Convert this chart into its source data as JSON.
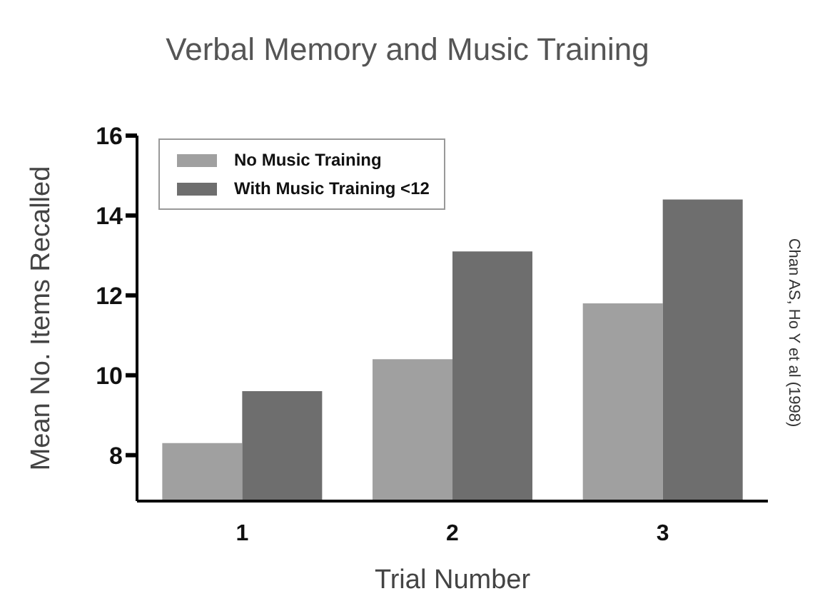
{
  "chart_data": {
    "type": "bar",
    "title": "Verbal Memory and Music Training",
    "xlabel": "Trial Number",
    "ylabel": "Mean No. Items Recalled",
    "categories": [
      "1",
      "2",
      "3"
    ],
    "series": [
      {
        "name": "No Music Training",
        "color": "#a0a0a0",
        "values": [
          8.3,
          10.4,
          11.8
        ]
      },
      {
        "name": "With Music Training <12",
        "color": "#6e6e6e",
        "values": [
          9.6,
          13.1,
          14.4
        ]
      }
    ],
    "ylim": [
      6.85,
      16
    ],
    "yticks": [
      8,
      10,
      12,
      14,
      16
    ],
    "grid": false,
    "legend": "top left",
    "annotations": [
      "Chan AS, Ho Y et al (1998)"
    ]
  }
}
